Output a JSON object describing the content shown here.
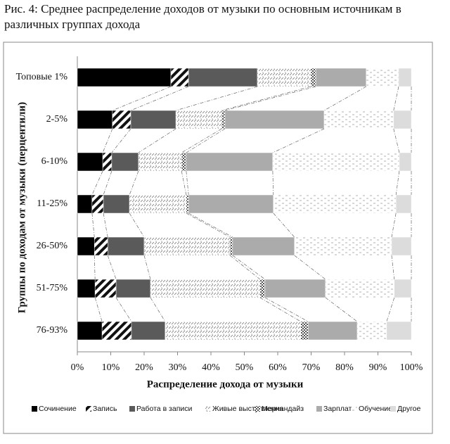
{
  "chart_data": {
    "type": "stacked_barh",
    "title": "Рис. 4: Среднее распределение доходов от музыки по основным источникам в различных группах дохода",
    "xlabel": "Распределение дохода от музыки",
    "ylabel": "Группы по доходам от музыки (перцентили)",
    "categories": [
      "Топовые  1%",
      "2-5%",
      "6-10%",
      "11-25%",
      "26-50%",
      "51-75%",
      "76-93%"
    ],
    "xlim": [
      0,
      100
    ],
    "xticks": [
      {
        "value": 0,
        "label": "0%"
      },
      {
        "value": 10,
        "label": "10%"
      },
      {
        "value": 20,
        "label": "20%"
      },
      {
        "value": 30,
        "label": "30%"
      },
      {
        "value": 40,
        "label": "40%"
      },
      {
        "value": 50,
        "label": "50%"
      },
      {
        "value": 60,
        "label": "60%"
      },
      {
        "value": 70,
        "label": "70%"
      },
      {
        "value": 80,
        "label": "80%"
      },
      {
        "value": 90,
        "label": "90%"
      },
      {
        "value": 100,
        "label": "100%"
      }
    ],
    "series": [
      {
        "name": "Сочинение",
        "color": "#000000",
        "pattern": "solid",
        "values": [
          28,
          10.5,
          7.6,
          4.4,
          5.1,
          5.3,
          7.4
        ]
      },
      {
        "name": "Запись",
        "color": "#111111",
        "pattern": "diagonal",
        "values": [
          5.3,
          5.5,
          2.7,
          3.4,
          4,
          6.3,
          8.8
        ]
      },
      {
        "name": "Работа в записи",
        "color": "#5a5a5a",
        "pattern": "solid",
        "values": [
          20.6,
          13.5,
          8,
          7.8,
          10.9,
          10.3,
          10.1
        ]
      },
      {
        "name": "Живые выступления",
        "color": "#777777",
        "pattern": "dots",
        "values": [
          16,
          13.7,
          12.9,
          17,
          25.7,
          32.8,
          40.6
        ]
      },
      {
        "name": "Мерчандайз",
        "color": "#555555",
        "pattern": "checker",
        "values": [
          1.5,
          1,
          1.4,
          0.7,
          0.8,
          1.5,
          2.2
        ]
      },
      {
        "name": "Зарплата",
        "color": "#ababab",
        "pattern": "solid",
        "values": [
          15.1,
          29.7,
          25.9,
          25.4,
          18.5,
          18.1,
          14.7
        ]
      },
      {
        "name": "Обучение",
        "color": "#999999",
        "pattern": "dashes",
        "values": [
          9.7,
          20.8,
          37.9,
          36.7,
          29.1,
          20.6,
          8.8
        ]
      },
      {
        "name": "Другое",
        "color": "#dcdcdc",
        "pattern": "solid",
        "values": [
          3.8,
          5.3,
          3.6,
          4.6,
          5.9,
          5.1,
          7.4
        ]
      }
    ]
  }
}
